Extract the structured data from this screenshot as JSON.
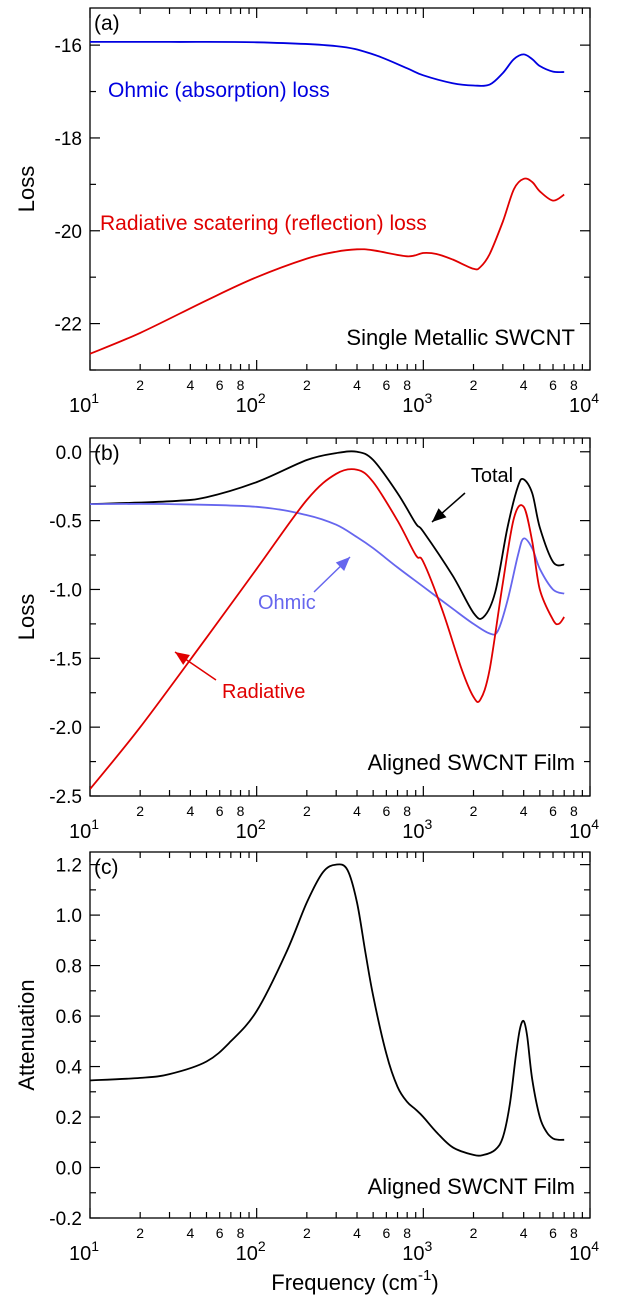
{
  "figure": {
    "xlabel_main": "Frequency (cm",
    "xlabel_sup": "-1",
    "xlabel_tail": ")"
  },
  "colors": {
    "ohmic_a": "#0000e0",
    "radiative": "#e00000",
    "total": "#000000",
    "ohmic_b": "#6666ee",
    "axis": "#000000"
  },
  "chart_data": [
    {
      "type": "line",
      "panel_label": "(a)",
      "ylabel": "Loss",
      "xscale": "log",
      "xlim": [
        10,
        10000
      ],
      "ylim": [
        -23,
        -15.2
      ],
      "yticks": [
        -22,
        -20,
        -18,
        -16
      ],
      "x_decade_labels": [
        "10",
        "10",
        "10",
        "10"
      ],
      "x_decade_exponents": [
        "1",
        "2",
        "3",
        "4"
      ],
      "x_minor_labels": [
        "2",
        "4",
        "6",
        "8"
      ],
      "annotation": "Single Metallic SWCNT",
      "series": [
        {
          "name": "Ohmic (absorption) loss",
          "color_key": "ohmic_a",
          "x": [
            10,
            30,
            100,
            300,
            500,
            800,
            1000,
            1500,
            2000,
            2500,
            3000,
            3500,
            4000,
            4500,
            5000,
            6000,
            7000
          ],
          "y": [
            -15.93,
            -15.93,
            -15.94,
            -16.02,
            -16.2,
            -16.5,
            -16.65,
            -16.82,
            -16.87,
            -16.85,
            -16.6,
            -16.3,
            -16.2,
            -16.3,
            -16.45,
            -16.57,
            -16.58
          ]
        },
        {
          "name": "Radiative scatering (reflection) loss",
          "color_key": "radiative",
          "x": [
            10,
            20,
            50,
            100,
            200,
            300,
            400,
            500,
            800,
            1000,
            1200,
            1500,
            2000,
            2200,
            2500,
            3000,
            3500,
            4000,
            4500,
            5000,
            6000,
            7000
          ],
          "y": [
            -22.65,
            -22.2,
            -21.5,
            -21.0,
            -20.6,
            -20.45,
            -20.4,
            -20.42,
            -20.55,
            -20.48,
            -20.5,
            -20.62,
            -20.82,
            -20.78,
            -20.5,
            -19.8,
            -19.1,
            -18.88,
            -18.95,
            -19.15,
            -19.35,
            -19.22
          ]
        }
      ]
    },
    {
      "type": "line",
      "panel_label": "(b)",
      "ylabel": "Loss",
      "xscale": "log",
      "xlim": [
        10,
        10000
      ],
      "ylim": [
        -2.5,
        0.1
      ],
      "yticks": [
        -2.5,
        -2.0,
        -1.5,
        -1.0,
        -0.5,
        0.0
      ],
      "ytick_labels": [
        "-2.5",
        "-2.0",
        "-1.5",
        "-1.0",
        "-0.5",
        "0.0"
      ],
      "x_decade_labels": [
        "10",
        "10",
        "10",
        "10"
      ],
      "x_decade_exponents": [
        "1",
        "2",
        "3",
        "4"
      ],
      "x_minor_labels": [
        "2",
        "4",
        "6",
        "8"
      ],
      "annotation": "Aligned SWCNT Film",
      "arrow_labels": [
        "Total",
        "Ohmic",
        "Radiative"
      ],
      "series": [
        {
          "name": "Total",
          "color_key": "total",
          "x": [
            10,
            30,
            50,
            100,
            200,
            300,
            400,
            500,
            700,
            900,
            1000,
            1500,
            2000,
            2300,
            2700,
            3200,
            3700,
            4000,
            4500,
            5000,
            6000,
            7000
          ],
          "y": [
            -0.38,
            -0.36,
            -0.33,
            -0.22,
            -0.06,
            -0.01,
            0.0,
            -0.06,
            -0.3,
            -0.52,
            -0.58,
            -0.9,
            -1.17,
            -1.2,
            -1.02,
            -0.55,
            -0.25,
            -0.2,
            -0.3,
            -0.55,
            -0.8,
            -0.82
          ]
        },
        {
          "name": "Ohmic",
          "color_key": "ohmic_b",
          "x": [
            10,
            30,
            100,
            200,
            300,
            400,
            500,
            700,
            1000,
            1500,
            2000,
            2500,
            2800,
            3200,
            3700,
            4000,
            4500,
            5000,
            6000,
            7000
          ],
          "y": [
            -0.38,
            -0.38,
            -0.4,
            -0.46,
            -0.53,
            -0.62,
            -0.7,
            -0.84,
            -0.98,
            -1.14,
            -1.25,
            -1.32,
            -1.3,
            -1.08,
            -0.75,
            -0.63,
            -0.7,
            -0.85,
            -1.0,
            -1.03
          ]
        },
        {
          "name": "Radiative",
          "color_key": "radiative",
          "x": [
            10,
            20,
            50,
            100,
            200,
            300,
            400,
            500,
            700,
            900,
            1000,
            1300,
            1700,
            2000,
            2200,
            2500,
            3000,
            3500,
            4000,
            4500,
            5000,
            6000,
            6500,
            7000
          ],
          "y": [
            -2.45,
            -2.0,
            -1.35,
            -0.85,
            -0.35,
            -0.16,
            -0.13,
            -0.22,
            -0.5,
            -0.75,
            -0.8,
            -1.15,
            -1.58,
            -1.78,
            -1.8,
            -1.58,
            -0.95,
            -0.48,
            -0.4,
            -0.65,
            -1.0,
            -1.22,
            -1.25,
            -1.2
          ]
        }
      ]
    },
    {
      "type": "line",
      "panel_label": "(c)",
      "ylabel": "Attenuation",
      "xscale": "log",
      "xlim": [
        10,
        10000
      ],
      "ylim": [
        -0.2,
        1.25
      ],
      "yticks": [
        -0.2,
        0.0,
        0.2,
        0.4,
        0.6,
        0.8,
        1.0,
        1.2
      ],
      "ytick_labels": [
        "-0.2",
        "0.0",
        "0.2",
        "0.4",
        "0.6",
        "0.8",
        "1.0",
        "1.2"
      ],
      "x_decade_labels": [
        "10",
        "10",
        "10",
        "10"
      ],
      "x_decade_exponents": [
        "1",
        "2",
        "3",
        "4"
      ],
      "x_minor_labels": [
        "2",
        "4",
        "6",
        "8"
      ],
      "annotation": "Aligned SWCNT Film",
      "series": [
        {
          "color_key": "total",
          "x": [
            10,
            20,
            30,
            50,
            70,
            100,
            150,
            200,
            250,
            300,
            350,
            400,
            450,
            500,
            600,
            700,
            800,
            900,
            1000,
            1200,
            1500,
            2000,
            2300,
            2700,
            3000,
            3300,
            3600,
            3800,
            4000,
            4200,
            4500,
            5000,
            5500,
            6000,
            6500,
            7000
          ],
          "y": [
            0.345,
            0.355,
            0.37,
            0.42,
            0.5,
            0.62,
            0.85,
            1.05,
            1.17,
            1.2,
            1.18,
            1.05,
            0.85,
            0.68,
            0.45,
            0.32,
            0.26,
            0.23,
            0.2,
            0.14,
            0.08,
            0.05,
            0.05,
            0.07,
            0.12,
            0.25,
            0.45,
            0.55,
            0.58,
            0.52,
            0.35,
            0.2,
            0.14,
            0.115,
            0.11,
            0.11
          ]
        }
      ]
    }
  ]
}
